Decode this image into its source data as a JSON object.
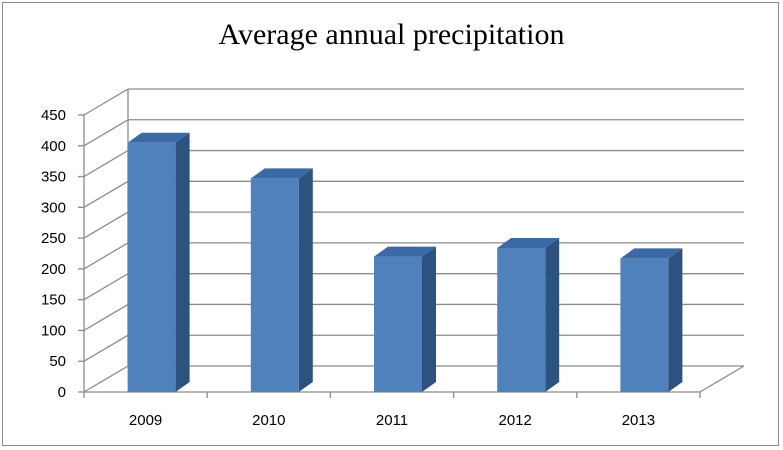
{
  "chart_data": {
    "type": "bar",
    "title": "Average annual precipitation",
    "categories": [
      "2009",
      "2010",
      "2011",
      "2012",
      "2013"
    ],
    "values": [
      405,
      347,
      220,
      234,
      217
    ],
    "ylim": [
      0,
      450
    ],
    "yticks": [
      0,
      50,
      100,
      150,
      200,
      250,
      300,
      350,
      400,
      450
    ],
    "xlabel": "",
    "ylabel": "",
    "grid": true,
    "legend": "none",
    "colors": {
      "bar_front": "#4f81bd",
      "bar_side": "#2d5280",
      "bar_top": "#3a6aa6",
      "grid": "#8c8c8c"
    }
  }
}
